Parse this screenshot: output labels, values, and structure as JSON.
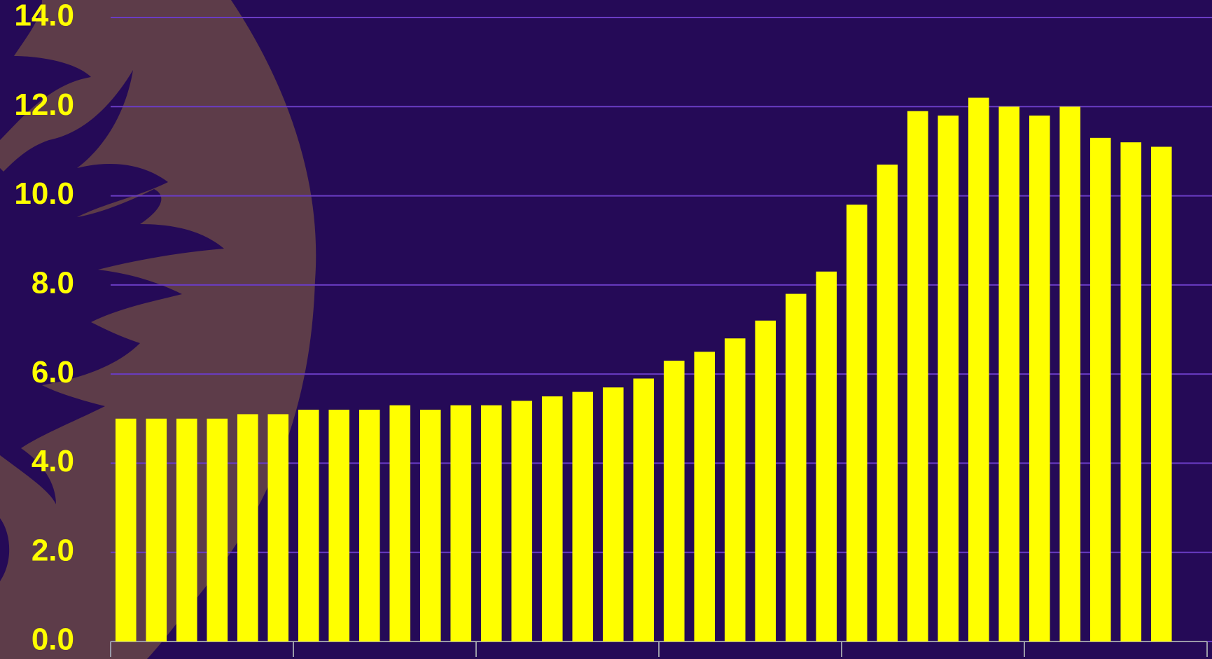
{
  "chart_data": {
    "type": "bar",
    "categories": [
      null,
      null,
      null,
      null,
      null,
      null,
      null,
      null,
      null,
      null,
      null,
      null,
      null,
      null,
      null,
      null,
      null,
      null,
      null,
      null,
      null,
      null,
      null,
      null,
      null,
      null,
      null,
      null,
      null,
      null,
      null,
      null,
      null,
      null,
      null,
      null
    ],
    "values": [
      5.0,
      5.0,
      5.0,
      5.0,
      5.1,
      5.1,
      5.2,
      5.2,
      5.2,
      5.3,
      5.2,
      5.3,
      5.3,
      5.4,
      5.5,
      5.6,
      5.7,
      5.9,
      6.3,
      6.5,
      6.8,
      7.2,
      7.8,
      8.3,
      9.8,
      10.7,
      11.9,
      11.8,
      12.2,
      12.0,
      11.8,
      12.0,
      11.3,
      11.2,
      11.1,
      null
    ],
    "color": "#ffff00",
    "ylim": [
      0,
      14
    ],
    "yticks": [
      {
        "value": 0,
        "label": "0.0"
      },
      {
        "value": 2,
        "label": "2.0"
      },
      {
        "value": 4,
        "label": "4.0"
      },
      {
        "value": 6,
        "label": "6.0"
      },
      {
        "value": 8,
        "label": "8.0"
      },
      {
        "value": 10,
        "label": "10.0"
      },
      {
        "value": 12,
        "label": "12.0"
      },
      {
        "value": 14,
        "label": "14.0"
      }
    ],
    "grid": true,
    "grid_color": "#6a3cc4"
  }
}
